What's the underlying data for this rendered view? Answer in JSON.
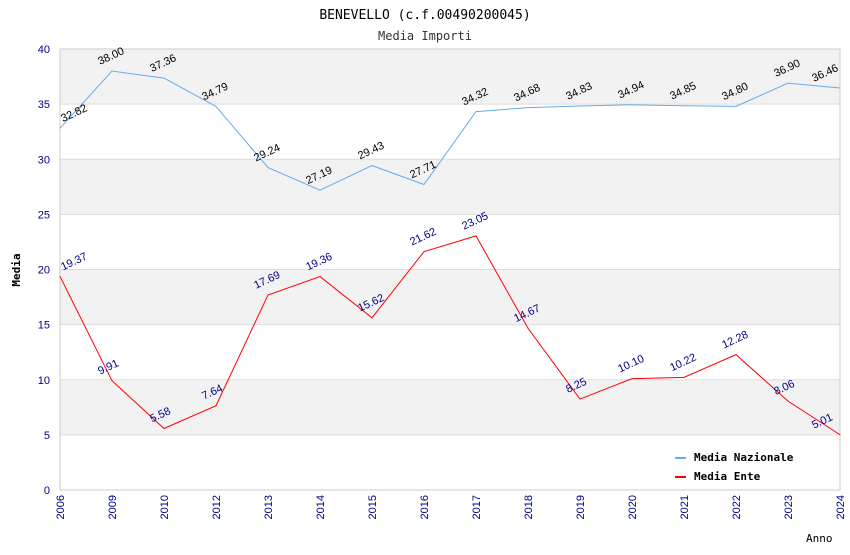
{
  "chart_data": {
    "type": "line",
    "title": "BENEVELLO (c.f.00490200045)",
    "subtitle": "Media Importi",
    "xlabel": "Anno",
    "ylabel": "Media",
    "ylim": [
      0,
      40
    ],
    "yticks": [
      0,
      5,
      10,
      15,
      20,
      25,
      30,
      35,
      40
    ],
    "categories": [
      "2006",
      "2009",
      "2010",
      "2012",
      "2013",
      "2014",
      "2015",
      "2016",
      "2017",
      "2018",
      "2019",
      "2020",
      "2021",
      "2022",
      "2023",
      "2024"
    ],
    "series": [
      {
        "name": "Media Nazionale",
        "color": "#66aaee",
        "label_color": "#000000",
        "values": [
          32.82,
          38.0,
          37.36,
          34.79,
          29.24,
          27.19,
          29.43,
          27.71,
          34.32,
          34.68,
          34.83,
          34.94,
          34.85,
          34.8,
          36.9,
          36.46
        ]
      },
      {
        "name": "Media Ente",
        "color": "#ff0000",
        "label_color": "#00008b",
        "values": [
          19.37,
          9.91,
          5.58,
          7.64,
          17.69,
          19.36,
          15.62,
          21.62,
          23.05,
          14.67,
          8.25,
          10.1,
          10.22,
          12.28,
          8.06,
          5.01
        ]
      }
    ],
    "grid": true,
    "legend": "top-right"
  }
}
